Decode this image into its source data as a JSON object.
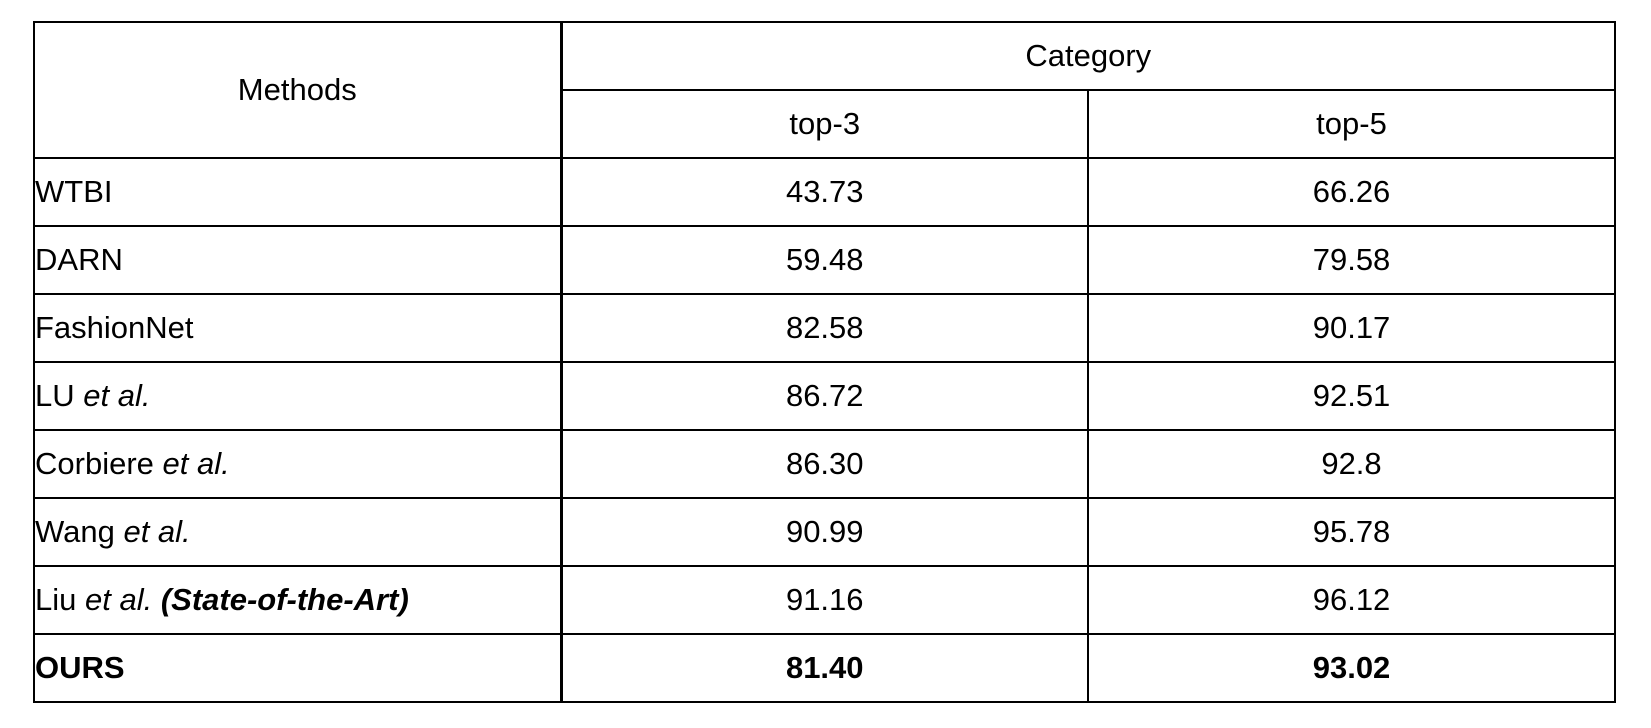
{
  "table": {
    "header": {
      "methods": "Methods",
      "group": "Category",
      "columns": [
        "top-3",
        "top-5"
      ]
    },
    "rows": [
      {
        "name": "WTBI",
        "suffix": "",
        "note": "",
        "top3": "43.73",
        "top5": "66.26"
      },
      {
        "name": "DARN",
        "suffix": "",
        "note": "",
        "top3": "59.48",
        "top5": "79.58"
      },
      {
        "name": "FashionNet",
        "suffix": "",
        "note": "",
        "top3": "82.58",
        "top5": "90.17"
      },
      {
        "name": "LU ",
        "suffix": "et al.",
        "note": "",
        "top3": "86.72",
        "top5": "92.51"
      },
      {
        "name": "Corbiere ",
        "suffix": "et al.",
        "note": "",
        "top3": "86.30",
        "top5": "92.8"
      },
      {
        "name": "Wang ",
        "suffix": "et al.",
        "note": "",
        "top3": "90.99",
        "top5": "95.78"
      },
      {
        "name": "Liu ",
        "suffix": "et al.",
        "note": " (State-of-the-Art)",
        "top3": "91.16",
        "top5": "96.12"
      }
    ],
    "ours": {
      "name": "OURS",
      "top3": "81.40",
      "top5": "93.02"
    }
  }
}
